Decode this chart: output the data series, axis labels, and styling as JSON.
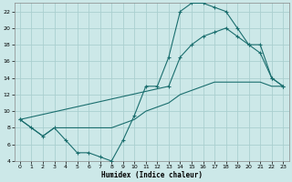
{
  "xlabel": "Humidex (Indice chaleur)",
  "bg_color": "#cce8e8",
  "grid_color": "#aacfcf",
  "line_color": "#1a6e6e",
  "line1_x": [
    0,
    1,
    2,
    3,
    4,
    5,
    6,
    7,
    8,
    9,
    10,
    11,
    12,
    13,
    14,
    15,
    16,
    17,
    18,
    19,
    20,
    21,
    22,
    23
  ],
  "line1_y": [
    9,
    8,
    7,
    8,
    6.5,
    5,
    5,
    4.5,
    4,
    6.5,
    9.5,
    13,
    13,
    16.5,
    22,
    23,
    23,
    22.5,
    22,
    20,
    18,
    17,
    14,
    13
  ],
  "line2_x": [
    0,
    1,
    2,
    3,
    4,
    5,
    6,
    7,
    8,
    9,
    10,
    11,
    12,
    13,
    14,
    15,
    16,
    17,
    18,
    19,
    20,
    21,
    22,
    23
  ],
  "line2_y": [
    9,
    8,
    7,
    8,
    8,
    8,
    8,
    8,
    8,
    8.5,
    9,
    10,
    10.5,
    11,
    12,
    12.5,
    13,
    13.5,
    13.5,
    13.5,
    13.5,
    13.5,
    13,
    13
  ],
  "line3_x": [
    0,
    13,
    14,
    15,
    16,
    17,
    18,
    19,
    20,
    21,
    22,
    23
  ],
  "line3_y": [
    9,
    13,
    16.5,
    18,
    19,
    19.5,
    20,
    19,
    18,
    18,
    14,
    13
  ],
  "ylim": [
    4,
    23
  ],
  "xlim": [
    -0.5,
    23.5
  ],
  "yticks": [
    4,
    6,
    8,
    10,
    12,
    14,
    16,
    18,
    20,
    22
  ],
  "xticks": [
    0,
    1,
    2,
    3,
    4,
    5,
    6,
    7,
    8,
    9,
    10,
    11,
    12,
    13,
    14,
    15,
    16,
    17,
    18,
    19,
    20,
    21,
    22,
    23
  ],
  "xlabel_fontsize": 5.5,
  "tick_fontsize": 4.5
}
